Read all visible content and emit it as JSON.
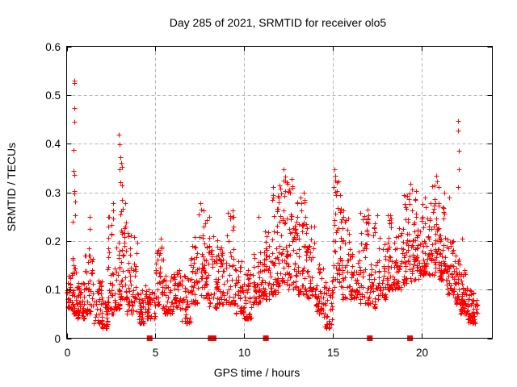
{
  "figure": {
    "background": "#ffffff"
  },
  "chart_data": {
    "type": "scatter",
    "title": "Day 285 of 2021, SRMTID for receiver olo5",
    "xlabel": "GPS time / hours",
    "ylabel": "SRMTID / TECUs",
    "xlim": [
      0,
      24
    ],
    "ylim": [
      0,
      0.6
    ],
    "xticks": [
      {
        "value": 0,
        "label": "0"
      },
      {
        "value": 5,
        "label": "5"
      },
      {
        "value": 10,
        "label": "10"
      },
      {
        "value": 15,
        "label": "15"
      },
      {
        "value": 20,
        "label": "20"
      }
    ],
    "yticks": [
      {
        "value": 0.0,
        "label": "0"
      },
      {
        "value": 0.1,
        "label": "0.1"
      },
      {
        "value": 0.2,
        "label": "0.2"
      },
      {
        "value": 0.3,
        "label": "0.3"
      },
      {
        "value": 0.4,
        "label": "0.4"
      },
      {
        "value": 0.5,
        "label": "0.5"
      },
      {
        "value": 0.6,
        "label": "0.6"
      }
    ],
    "grid": true,
    "legend": "none",
    "marker": "plus",
    "marker_color": "#ff0000",
    "marker_size": 3,
    "grid_color": "#b5b5b5",
    "axis_color": "#000000",
    "gap_markers": {
      "shape": "filled-square",
      "color": "#ff0000",
      "y": 0,
      "x_positions": [
        4.68,
        8.12,
        8.28,
        11.23,
        17.09,
        19.36
      ]
    },
    "seed": 2021285,
    "density_bins": [
      [
        0.0,
        0.3,
        0.06,
        0.13,
        30
      ],
      [
        0.3,
        0.6,
        0.05,
        0.17,
        35
      ],
      [
        0.6,
        1.0,
        0.04,
        0.12,
        40
      ],
      [
        1.0,
        1.5,
        0.05,
        0.2,
        45
      ],
      [
        1.5,
        2.0,
        0.03,
        0.12,
        40
      ],
      [
        2.0,
        2.3,
        0.02,
        0.08,
        28
      ],
      [
        2.3,
        2.7,
        0.05,
        0.25,
        38
      ],
      [
        2.7,
        3.0,
        0.06,
        0.2,
        30
      ],
      [
        3.0,
        3.4,
        0.08,
        0.3,
        40
      ],
      [
        3.4,
        4.0,
        0.05,
        0.22,
        50
      ],
      [
        4.0,
        4.5,
        0.03,
        0.11,
        42
      ],
      [
        4.5,
        5.0,
        0.04,
        0.1,
        38
      ],
      [
        5.0,
        5.5,
        0.06,
        0.19,
        42
      ],
      [
        5.5,
        6.0,
        0.05,
        0.13,
        40
      ],
      [
        6.0,
        6.5,
        0.06,
        0.14,
        40
      ],
      [
        6.5,
        7.0,
        0.03,
        0.13,
        40
      ],
      [
        7.0,
        7.5,
        0.07,
        0.21,
        45
      ],
      [
        7.5,
        8.0,
        0.08,
        0.27,
        45
      ],
      [
        8.0,
        8.5,
        0.06,
        0.22,
        40
      ],
      [
        8.5,
        9.0,
        0.07,
        0.19,
        40
      ],
      [
        9.0,
        9.5,
        0.07,
        0.26,
        42
      ],
      [
        9.5,
        10.0,
        0.05,
        0.16,
        40
      ],
      [
        10.0,
        10.5,
        0.04,
        0.14,
        40
      ],
      [
        10.5,
        11.0,
        0.07,
        0.18,
        42
      ],
      [
        11.0,
        11.5,
        0.08,
        0.22,
        42
      ],
      [
        11.5,
        12.0,
        0.09,
        0.3,
        45
      ],
      [
        12.0,
        12.5,
        0.11,
        0.33,
        46
      ],
      [
        12.5,
        13.0,
        0.1,
        0.32,
        46
      ],
      [
        13.0,
        13.5,
        0.09,
        0.29,
        45
      ],
      [
        13.5,
        14.0,
        0.08,
        0.23,
        42
      ],
      [
        14.0,
        14.5,
        0.05,
        0.17,
        40
      ],
      [
        14.5,
        15.0,
        0.02,
        0.12,
        40
      ],
      [
        15.0,
        15.5,
        0.1,
        0.33,
        45
      ],
      [
        15.5,
        16.0,
        0.08,
        0.25,
        42
      ],
      [
        16.0,
        16.5,
        0.08,
        0.18,
        40
      ],
      [
        16.5,
        17.0,
        0.07,
        0.26,
        40
      ],
      [
        17.0,
        17.5,
        0.06,
        0.24,
        40
      ],
      [
        17.5,
        18.0,
        0.08,
        0.22,
        40
      ],
      [
        18.0,
        18.5,
        0.1,
        0.26,
        42
      ],
      [
        18.5,
        19.0,
        0.1,
        0.23,
        42
      ],
      [
        19.0,
        19.5,
        0.11,
        0.3,
        45
      ],
      [
        19.5,
        20.0,
        0.12,
        0.3,
        45
      ],
      [
        20.0,
        20.5,
        0.13,
        0.29,
        48
      ],
      [
        20.5,
        21.0,
        0.13,
        0.32,
        48
      ],
      [
        21.0,
        21.4,
        0.12,
        0.27,
        40
      ],
      [
        21.4,
        21.8,
        0.09,
        0.21,
        40
      ],
      [
        21.8,
        22.2,
        0.07,
        0.17,
        38
      ],
      [
        22.2,
        22.6,
        0.05,
        0.14,
        45
      ],
      [
        22.6,
        23.0,
        0.03,
        0.1,
        45
      ],
      [
        23.0,
        23.15,
        0.03,
        0.08,
        10
      ]
    ],
    "outliers": [
      [
        0.42,
        0.53
      ],
      [
        0.44,
        0.525
      ],
      [
        0.45,
        0.473
      ],
      [
        0.43,
        0.445
      ],
      [
        0.4,
        0.387
      ],
      [
        0.38,
        0.344
      ],
      [
        0.42,
        0.335
      ],
      [
        0.41,
        0.302
      ],
      [
        0.44,
        0.297
      ],
      [
        0.47,
        0.281
      ],
      [
        0.5,
        0.252
      ],
      [
        0.36,
        0.24
      ],
      [
        1.3,
        0.25
      ],
      [
        1.32,
        0.225
      ],
      [
        2.6,
        0.278
      ],
      [
        2.62,
        0.262
      ],
      [
        2.95,
        0.418
      ],
      [
        2.97,
        0.398
      ],
      [
        3.02,
        0.372
      ],
      [
        3.08,
        0.36
      ],
      [
        3.12,
        0.352
      ],
      [
        3.0,
        0.347
      ],
      [
        3.05,
        0.32
      ],
      [
        3.1,
        0.314
      ],
      [
        3.3,
        0.278
      ],
      [
        5.3,
        0.205
      ],
      [
        7.45,
        0.255
      ],
      [
        7.55,
        0.278
      ],
      [
        7.6,
        0.265
      ],
      [
        8.05,
        0.25
      ],
      [
        9.35,
        0.262
      ],
      [
        9.4,
        0.25
      ],
      [
        10.8,
        0.25
      ],
      [
        11.58,
        0.285
      ],
      [
        11.62,
        0.31
      ],
      [
        11.65,
        0.295
      ],
      [
        12.25,
        0.348
      ],
      [
        12.3,
        0.332
      ],
      [
        12.6,
        0.3
      ],
      [
        12.7,
        0.327
      ],
      [
        12.75,
        0.312
      ],
      [
        13.35,
        0.3
      ],
      [
        13.4,
        0.285
      ],
      [
        15.05,
        0.31
      ],
      [
        15.1,
        0.348
      ],
      [
        15.15,
        0.334
      ],
      [
        15.22,
        0.32
      ],
      [
        15.6,
        0.262
      ],
      [
        16.95,
        0.265
      ],
      [
        17.0,
        0.252
      ],
      [
        17.5,
        0.253
      ],
      [
        18.25,
        0.252
      ],
      [
        19.4,
        0.318
      ],
      [
        19.45,
        0.305
      ],
      [
        19.7,
        0.302
      ],
      [
        20.6,
        0.312
      ],
      [
        20.85,
        0.334
      ],
      [
        20.9,
        0.322
      ],
      [
        20.95,
        0.31
      ],
      [
        21.3,
        0.3
      ],
      [
        21.55,
        0.29
      ],
      [
        22.05,
        0.446
      ],
      [
        22.07,
        0.426
      ],
      [
        22.1,
        0.385
      ],
      [
        22.12,
        0.347
      ],
      [
        22.08,
        0.31
      ],
      [
        22.3,
        0.205
      ]
    ]
  }
}
